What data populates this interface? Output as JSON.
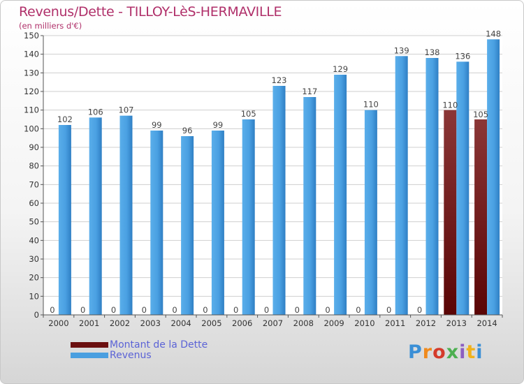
{
  "header": {
    "title": "Revenus/Dette - TILLOY-LèS-HERMAVILLE",
    "subtitle": "(en milliers d'€)"
  },
  "legend": {
    "items": [
      {
        "label": "Montant de la Dette",
        "color": "#6b0f0f"
      },
      {
        "label": "Revenus",
        "color": "#4a9fe0"
      }
    ]
  },
  "logo": {
    "text": "Proxiti",
    "colors": [
      "#3a8fd6",
      "#f08a1c",
      "#d43b2b",
      "#4caf50",
      "#8c5fc2",
      "#f0b21c",
      "#3a8fd6"
    ]
  },
  "chart_data": {
    "type": "bar",
    "title": "Revenus/Dette - TILLOY-LèS-HERMAVILLE",
    "ylabel": "(en milliers d'€)",
    "xlabel": "",
    "ylim": [
      0,
      150
    ],
    "yticks": [
      0,
      10,
      20,
      30,
      40,
      50,
      60,
      70,
      80,
      90,
      100,
      110,
      120,
      130,
      140,
      150
    ],
    "grid": true,
    "legend_position": "bottom-left",
    "categories": [
      "2000",
      "2001",
      "2002",
      "2003",
      "2004",
      "2005",
      "2006",
      "2007",
      "2008",
      "2009",
      "2010",
      "2011",
      "2012",
      "2013",
      "2014"
    ],
    "series": [
      {
        "name": "Montant de la Dette",
        "color": "#6b0f0f",
        "values": [
          0,
          0,
          0,
          0,
          0,
          0,
          0,
          0,
          0,
          0,
          0,
          0,
          0,
          110,
          105
        ],
        "labels": [
          "0",
          "0",
          "0",
          "0",
          "0",
          "0",
          "0",
          "0",
          "0",
          "0",
          "0",
          "0",
          "0",
          "110",
          "105"
        ]
      },
      {
        "name": "Revenus",
        "color": "#4a9fe0",
        "values": [
          102,
          106,
          107,
          99,
          96,
          99,
          105,
          123,
          117,
          129,
          110,
          139,
          138,
          136,
          148
        ],
        "labels": [
          "102",
          "106",
          "107",
          "99",
          "96",
          "99",
          "105",
          "123",
          "117",
          "129",
          "110",
          "139",
          "138",
          "136",
          "148"
        ]
      }
    ]
  }
}
